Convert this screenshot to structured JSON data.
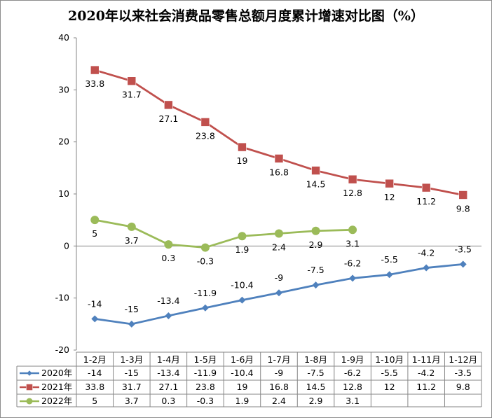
{
  "chart_data": {
    "type": "line",
    "title": "2020年以来社会消费品零售总额月度累计增速对比图（%）",
    "categories": [
      "1-2月",
      "1-3月",
      "1-4月",
      "1-5月",
      "1-6月",
      "1-7月",
      "1-8月",
      "1-9月",
      "1-10月",
      "1-11月",
      "1-12月"
    ],
    "ylim": [
      -20,
      40
    ],
    "yticks": [
      40,
      30,
      20,
      10,
      0,
      -10,
      -20
    ],
    "grid": false,
    "legend": "data-table",
    "series": [
      {
        "name": "2020年",
        "color": "#4F81BD",
        "marker": "diamond",
        "label_pos": "above",
        "values": [
          -14,
          -15,
          -13.4,
          -11.9,
          -10.4,
          -9,
          -7.5,
          -6.2,
          -5.5,
          -4.2,
          -3.5
        ]
      },
      {
        "name": "2021年",
        "color": "#C0504D",
        "marker": "square",
        "label_pos": "below",
        "values": [
          33.8,
          31.7,
          27.1,
          23.8,
          19,
          16.8,
          14.5,
          12.8,
          12,
          11.2,
          9.8
        ]
      },
      {
        "name": "2022年",
        "color": "#9BBB59",
        "marker": "circle",
        "label_pos": "below",
        "values": [
          5,
          3.7,
          0.3,
          -0.3,
          1.9,
          2.4,
          2.9,
          3.1,
          null,
          null,
          null
        ]
      }
    ]
  }
}
